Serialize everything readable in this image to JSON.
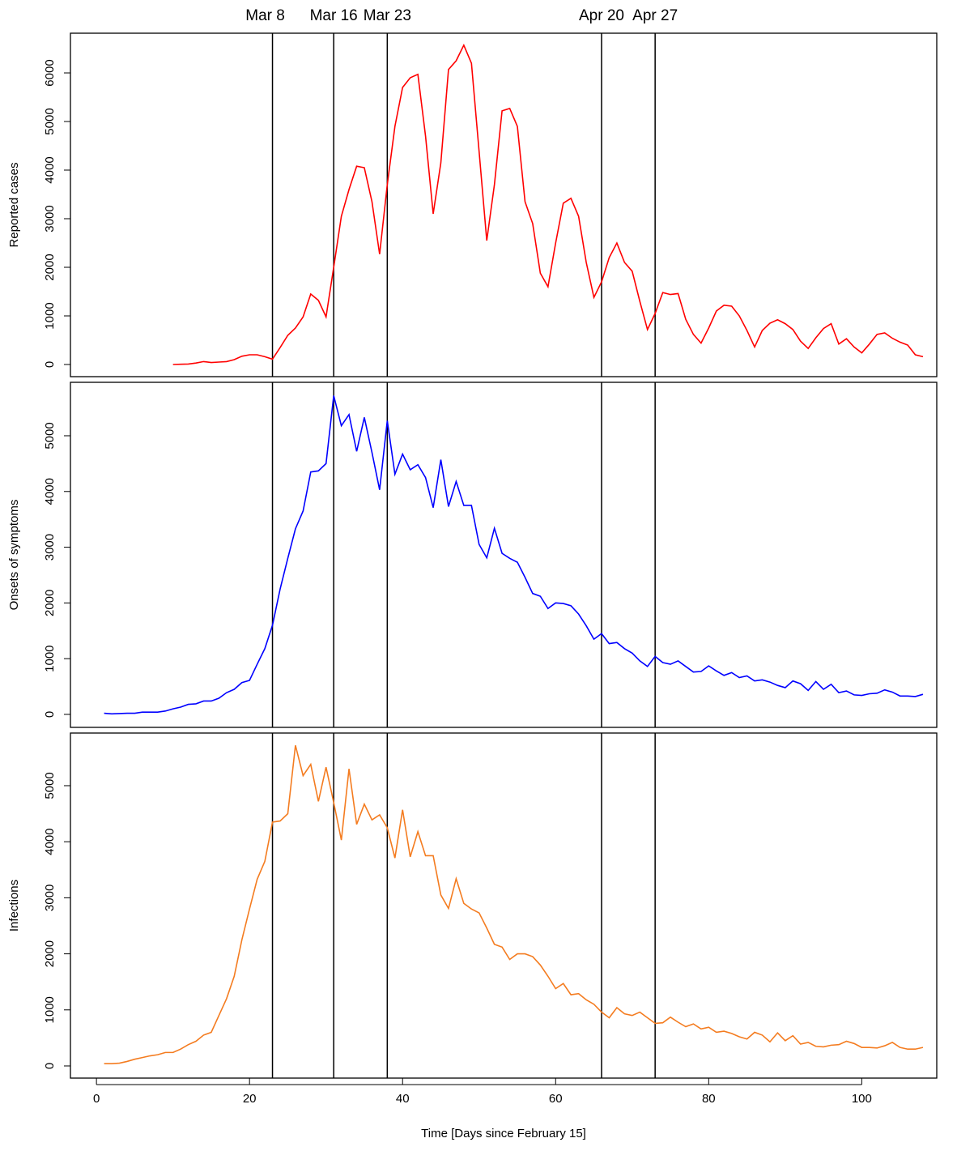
{
  "chart_data": [
    {
      "type": "line",
      "ylabel": "Reported cases",
      "xlim": [
        -3.4,
        109.8
      ],
      "ylim": [
        -250,
        6817
      ],
      "yticks": [
        0,
        1000,
        2000,
        3000,
        4000,
        5000,
        6000
      ],
      "annotations": [
        {
          "x": 23,
          "label": "Mar 8"
        },
        {
          "x": 31,
          "label": "Mar 16"
        },
        {
          "x": 38,
          "label": "Mar 23"
        },
        {
          "x": 66,
          "label": "Apr 20"
        },
        {
          "x": 73,
          "label": "Apr 27"
        }
      ],
      "series": [
        {
          "color": "#ff0000",
          "x": [
            10,
            11,
            12,
            13,
            14,
            15,
            16,
            17,
            18,
            19,
            20,
            21,
            22,
            23,
            24,
            25,
            26,
            27,
            28,
            29,
            30,
            31,
            32,
            33,
            34,
            35,
            36,
            37,
            38,
            39,
            40,
            41,
            42,
            43,
            44,
            45,
            46,
            47,
            48,
            49,
            50,
            51,
            52,
            53,
            54,
            55,
            56,
            57,
            58,
            59,
            60,
            61,
            62,
            63,
            64,
            65,
            66,
            67,
            68,
            69,
            70,
            71,
            72,
            73,
            74,
            75,
            76,
            77,
            78,
            79,
            80,
            81,
            82,
            83,
            84,
            85,
            86,
            87,
            88,
            89,
            90,
            91,
            92,
            93,
            94,
            95,
            96,
            97,
            98,
            99,
            100,
            101,
            102,
            103,
            104,
            105,
            106,
            107,
            108
          ],
          "values": [
            0,
            5,
            10,
            30,
            60,
            40,
            50,
            60,
            100,
            170,
            200,
            200,
            160,
            110,
            350,
            600,
            750,
            980,
            1450,
            1320,
            980,
            2000,
            3050,
            3600,
            4080,
            4050,
            3350,
            2270,
            3700,
            4900,
            5700,
            5900,
            5970,
            4700,
            3100,
            4150,
            6070,
            6250,
            6570,
            6200,
            4380,
            2550,
            3700,
            5220,
            5270,
            4900,
            3350,
            2900,
            1880,
            1600,
            2500,
            3320,
            3420,
            3050,
            2100,
            1380,
            1700,
            2200,
            2500,
            2100,
            1920,
            1300,
            720,
            1050,
            1480,
            1440,
            1460,
            930,
            620,
            440,
            750,
            1100,
            1220,
            1200,
            1000,
            700,
            360,
            700,
            850,
            920,
            840,
            720,
            480,
            330,
            550,
            740,
            840,
            420,
            530,
            360,
            240,
            420,
            620,
            650,
            540,
            460,
            400,
            200,
            160
          ]
        }
      ]
    },
    {
      "type": "line",
      "ylabel": "Onsets of symptoms",
      "xlim": [
        -3.4,
        109.8
      ],
      "ylim": [
        -233,
        5959
      ],
      "yticks": [
        0,
        1000,
        2000,
        3000,
        4000,
        5000
      ],
      "series": [
        {
          "color": "#0000ff",
          "x": [
            1,
            2,
            3,
            4,
            5,
            6,
            7,
            8,
            9,
            10,
            11,
            12,
            13,
            14,
            15,
            16,
            17,
            18,
            19,
            20,
            21,
            22,
            23,
            24,
            25,
            26,
            27,
            28,
            29,
            30,
            31,
            32,
            33,
            34,
            35,
            36,
            37,
            38,
            39,
            40,
            41,
            42,
            43,
            44,
            45,
            46,
            47,
            48,
            49,
            50,
            51,
            52,
            53,
            54,
            55,
            56,
            57,
            58,
            59,
            60,
            61,
            62,
            63,
            64,
            65,
            66,
            67,
            68,
            69,
            70,
            71,
            72,
            73,
            74,
            75,
            76,
            77,
            78,
            79,
            80,
            81,
            82,
            83,
            84,
            85,
            86,
            87,
            88,
            89,
            90,
            91,
            92,
            93,
            94,
            95,
            96,
            97,
            98,
            99,
            100,
            101,
            102,
            103,
            104,
            105,
            106,
            107,
            108
          ],
          "values": [
            20,
            10,
            15,
            20,
            20,
            40,
            40,
            40,
            60,
            100,
            130,
            180,
            190,
            240,
            240,
            290,
            390,
            450,
            570,
            610,
            900,
            1180,
            1600,
            2250,
            2800,
            3330,
            3650,
            4350,
            4370,
            4500,
            5720,
            5180,
            5380,
            4720,
            5330,
            4700,
            4030,
            5270,
            4310,
            4670,
            4390,
            4480,
            4250,
            3710,
            4570,
            3730,
            4180,
            3750,
            3750,
            3050,
            2810,
            3340,
            2890,
            2800,
            2730,
            2460,
            2170,
            2120,
            1900,
            2000,
            1990,
            1950,
            1800,
            1590,
            1350,
            1450,
            1270,
            1290,
            1180,
            1100,
            960,
            860,
            1040,
            930,
            900,
            960,
            860,
            760,
            770,
            870,
            780,
            700,
            750,
            660,
            690,
            600,
            620,
            580,
            520,
            480,
            600,
            550,
            430,
            590,
            450,
            540,
            390,
            420,
            350,
            340,
            370,
            380,
            440,
            400,
            330,
            330,
            320,
            360
          ]
        }
      ]
    },
    {
      "type": "line",
      "ylabel": "Infections",
      "xlabel": "Time [Days since February 15]",
      "xlim": [
        -3.4,
        109.8
      ],
      "ylim": [
        -217,
        5939
      ],
      "yticks": [
        0,
        1000,
        2000,
        3000,
        4000,
        5000
      ],
      "xticks": [
        0,
        20,
        40,
        60,
        80,
        100
      ],
      "series": [
        {
          "color": "#f47c20",
          "x": [
            1,
            2,
            3,
            4,
            5,
            6,
            7,
            8,
            9,
            10,
            11,
            12,
            13,
            14,
            15,
            16,
            17,
            18,
            19,
            20,
            21,
            22,
            23,
            24,
            25,
            26,
            27,
            28,
            29,
            30,
            31,
            32,
            33,
            34,
            35,
            36,
            37,
            38,
            39,
            40,
            41,
            42,
            43,
            44,
            45,
            46,
            47,
            48,
            49,
            50,
            51,
            52,
            53,
            54,
            55,
            56,
            57,
            58,
            59,
            60,
            61,
            62,
            63,
            64,
            65,
            66,
            67,
            68,
            69,
            70,
            71,
            72,
            73,
            74,
            75,
            76,
            77,
            78,
            79,
            80,
            81,
            82,
            83,
            84,
            85,
            86,
            87,
            88,
            89,
            90,
            91,
            92,
            93,
            94,
            95,
            96,
            97,
            98,
            99,
            100,
            101,
            102,
            103,
            104,
            105,
            106,
            107,
            108
          ],
          "values": [
            40,
            40,
            50,
            80,
            120,
            150,
            180,
            200,
            240,
            240,
            300,
            380,
            440,
            550,
            600,
            900,
            1200,
            1600,
            2250,
            2800,
            3330,
            3650,
            4350,
            4370,
            4500,
            5720,
            5180,
            5380,
            4720,
            5330,
            4700,
            4030,
            5300,
            4310,
            4670,
            4390,
            4480,
            4250,
            3710,
            4570,
            3730,
            4180,
            3750,
            3750,
            3050,
            2810,
            3340,
            2900,
            2800,
            2730,
            2460,
            2170,
            2120,
            1900,
            2000,
            2000,
            1950,
            1800,
            1600,
            1380,
            1470,
            1270,
            1290,
            1180,
            1100,
            960,
            860,
            1040,
            930,
            900,
            960,
            860,
            760,
            770,
            870,
            780,
            700,
            750,
            660,
            690,
            600,
            620,
            580,
            520,
            480,
            600,
            550,
            430,
            590,
            450,
            540,
            390,
            420,
            350,
            340,
            370,
            380,
            440,
            400,
            330,
            330,
            320,
            360,
            420,
            330,
            300,
            300,
            330
          ]
        }
      ]
    }
  ]
}
